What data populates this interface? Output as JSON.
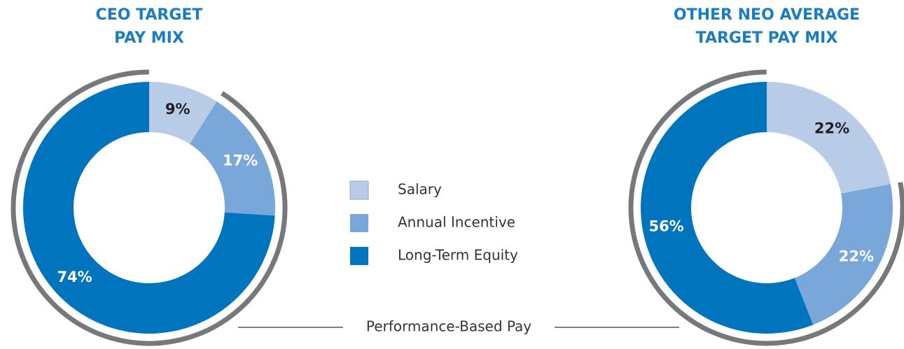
{
  "legend": {
    "categories": [
      "Salary",
      "Annual Incentive",
      "Long-Term Equity"
    ],
    "colors": [
      "#b8cce8",
      "#7aa7da",
      "#0074bd"
    ]
  },
  "chart_data": [
    {
      "type": "pie",
      "title": [
        "CEO TARGET",
        "PAY MIX"
      ],
      "values": [
        9,
        17,
        74
      ],
      "value_labels": [
        "9%",
        "17%",
        "74%"
      ],
      "label_colors": [
        "#231f20",
        "#ffffff",
        "#ffffff"
      ]
    },
    {
      "type": "pie",
      "title": [
        "OTHER NEO AVERAGE",
        "TARGET PAY MIX"
      ],
      "values": [
        22,
        22,
        56
      ],
      "value_labels": [
        "22%",
        "22%",
        "56%"
      ],
      "label_colors": [
        "#231f20",
        "#ffffff",
        "#ffffff"
      ]
    }
  ],
  "annotation": "Performance-Based Pay"
}
